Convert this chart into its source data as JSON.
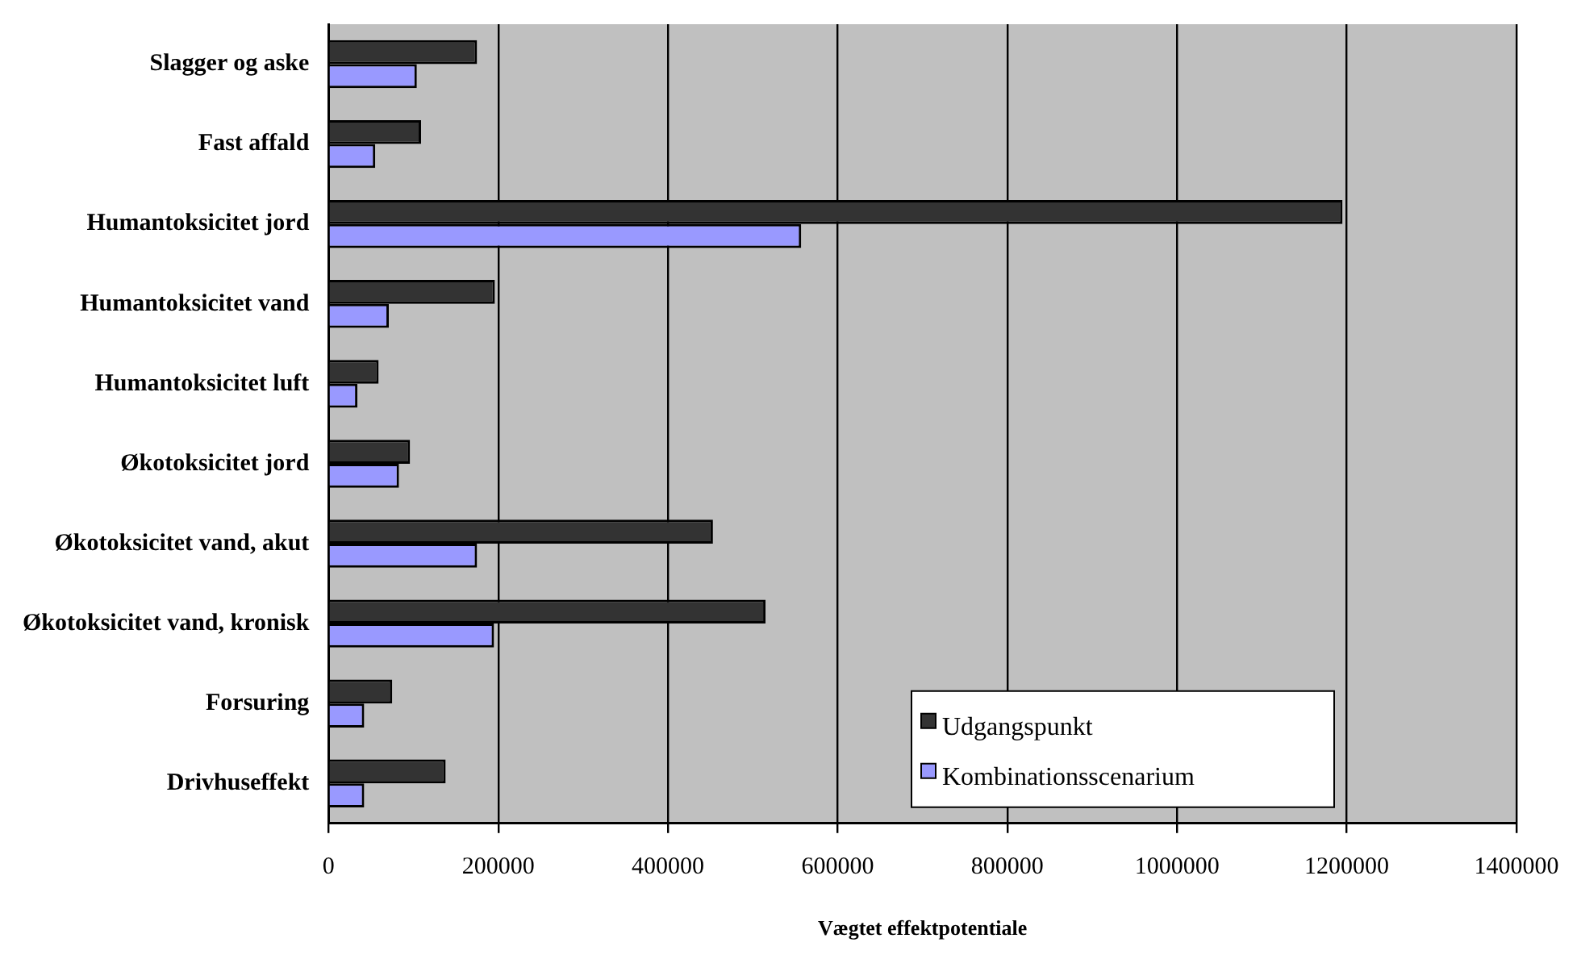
{
  "chart_data": {
    "type": "bar",
    "orientation": "horizontal",
    "xlabel": "Vægtet effektpotentiale",
    "categories": [
      "Slagger og aske",
      "Fast affald",
      "Humantoksicitet jord",
      "Humantoksicitet vand",
      "Humantoksicitet luft",
      "Økotoksicitet jord",
      "Økotoksicitet vand, akut",
      "Økotoksicitet vand, kronisk",
      "Forsuring",
      "Drivhuseffekt"
    ],
    "series": [
      {
        "name": "Udgangspunkt",
        "color": "#333333",
        "values": [
          175000,
          109000,
          1195000,
          196000,
          59000,
          96000,
          453000,
          515000,
          75000,
          138000
        ]
      },
      {
        "name": "Kombinationsscenarium",
        "color": "#9999ff",
        "values": [
          104000,
          55000,
          557000,
          71000,
          34000,
          83000,
          175000,
          195000,
          42000,
          42000
        ]
      }
    ],
    "xlim": [
      0,
      1400000
    ],
    "xticks": [
      0,
      200000,
      400000,
      600000,
      800000,
      1000000,
      1200000,
      1400000
    ],
    "grid": "x",
    "legend": "bottom right"
  }
}
